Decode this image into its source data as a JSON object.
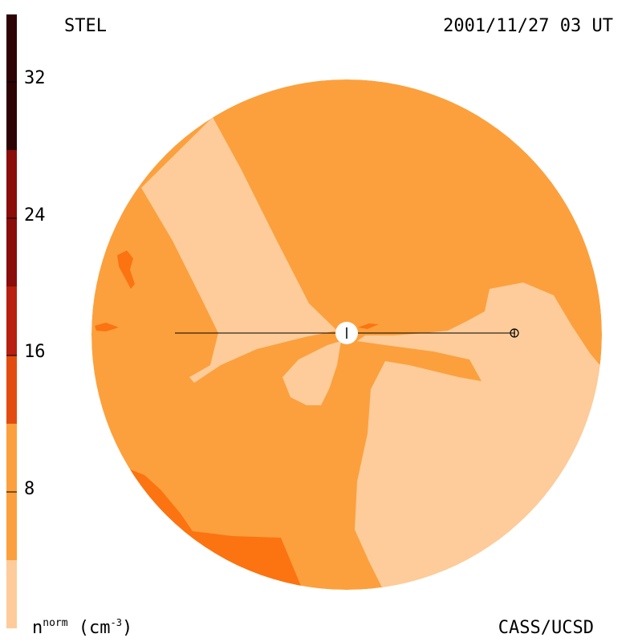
{
  "header": {
    "instrument": "STEL",
    "datetime": "2001/11/27 03 UT"
  },
  "footer": {
    "quantity_symbol": "n",
    "quantity_superscript": "norm",
    "units_open": " (cm",
    "units_exponent": "-3",
    "units_close": ")",
    "credit": "CASS/UCSD"
  },
  "colorbar": {
    "ticks": [
      "32",
      "24",
      "16",
      "8"
    ],
    "colors": [
      "#fdcc9a",
      "#fca03d",
      "#fb7411",
      "#e34c0f",
      "#b81f0e",
      "#8a0d0a",
      "#5e0606",
      "#2e0304"
    ]
  },
  "map": {
    "colors": {
      "light": "#fdcc9a",
      "medium": "#fca03d",
      "dark": "#fb7411"
    },
    "markers": [
      "sun-marker",
      "earth-marker"
    ]
  }
}
